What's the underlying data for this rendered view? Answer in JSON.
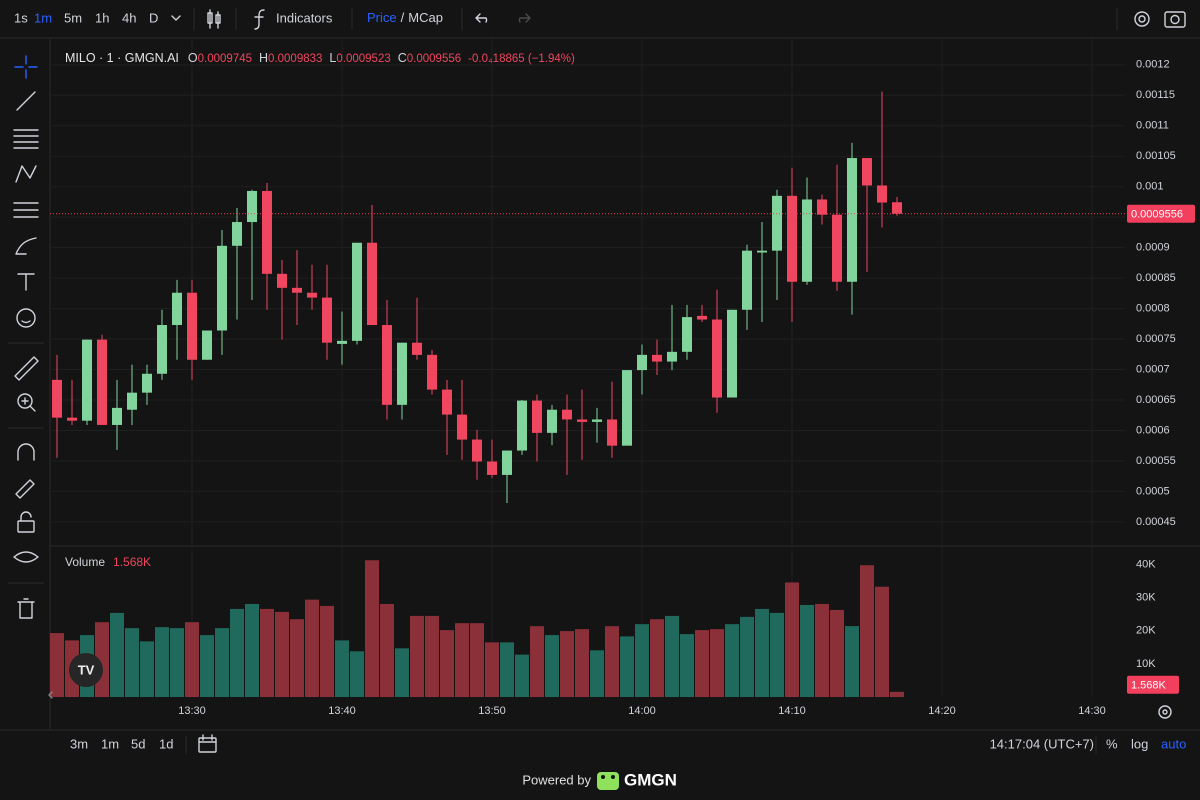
{
  "toolbar": {
    "intervals": [
      "1s",
      "1m",
      "5m",
      "1h",
      "4h",
      "D"
    ],
    "indicators": "Indicators",
    "price": "Price",
    "separator": "/",
    "mcap": "MCap"
  },
  "chart_data": {
    "type": "candlestick",
    "symbol": "MILO · 1 · GMGN.AI",
    "ohlc_labels": [
      "O",
      "H",
      "L",
      "C"
    ],
    "change": "-0.0₄18865 (−1.94%)",
    "open": [
      0.000683,
      0.000621,
      0.000616,
      0.000749,
      0.000609,
      0.000634,
      0.000662,
      0.000693,
      0.000773,
      0.000826,
      0.000716,
      0.000764,
      0.000903,
      0.000942,
      0.000993,
      0.000857,
      0.000834,
      0.000826,
      0.000818,
      0.000742,
      0.000747,
      0.000908,
      0.000773,
      0.000642,
      0.000744,
      0.000724,
      0.000667,
      0.000626,
      0.000585,
      0.000549,
      0.000527,
      0.000567,
      0.000649,
      0.000596,
      0.000634,
      0.000618,
      0.000614,
      0.000618,
      0.000575,
      0.000699,
      0.000724,
      0.000713,
      0.000729,
      0.000788,
      0.000782,
      0.000654,
      0.000798,
      0.000892,
      0.000895,
      0.000985,
      0.000844,
      0.000979,
      0.000954,
      0.000844,
      0.001047,
      0.001002,
      0.0009745
    ],
    "high": [
      0.000724,
      0.000683,
      0.000749,
      0.000757,
      0.000683,
      0.000708,
      0.000708,
      0.000798,
      0.000847,
      0.000847,
      0.000764,
      0.000929,
      0.000965,
      0.000995,
      0.001006,
      0.00088,
      0.000896,
      0.000872,
      0.000872,
      0.000795,
      0.000908,
      0.00097,
      0.000814,
      0.000744,
      0.000818,
      0.000732,
      0.000683,
      0.000683,
      0.000601,
      0.000585,
      0.000567,
      0.00065,
      0.000659,
      0.000642,
      0.000659,
      0.000667,
      0.000637,
      0.00068,
      0.000699,
      0.000741,
      0.000749,
      0.000806,
      0.000806,
      0.000806,
      0.000831,
      0.000798,
      0.000905,
      0.000942,
      0.000995,
      0.001031,
      0.001015,
      0.000987,
      0.001036,
      0.001072,
      0.001047,
      0.001156,
      0.0009833
    ],
    "low": [
      0.000555,
      0.000609,
      0.000609,
      0.000609,
      0.000568,
      0.000609,
      0.000642,
      0.000683,
      0.000716,
      0.000683,
      0.000716,
      0.000724,
      0.000782,
      0.000814,
      0.000798,
      0.000749,
      0.000773,
      0.000798,
      0.000716,
      0.000708,
      0.000741,
      0.000773,
      0.000618,
      0.000618,
      0.000716,
      0.000659,
      0.00056,
      0.000552,
      0.000519,
      0.000522,
      0.000481,
      0.00056,
      0.000549,
      0.000576,
      0.000527,
      0.000552,
      0.00058,
      0.000555,
      0.000575,
      0.000659,
      0.000691,
      0.000699,
      0.000716,
      0.000778,
      0.000629,
      0.000654,
      0.000765,
      0.000778,
      0.000814,
      0.000778,
      0.000839,
      0.000938,
      0.000829,
      0.00079,
      0.00086,
      0.000933,
      0.0009523
    ],
    "close": [
      0.000621,
      0.000616,
      0.000749,
      0.000609,
      0.000637,
      0.000662,
      0.000693,
      0.000773,
      0.000826,
      0.000716,
      0.000764,
      0.000903,
      0.000942,
      0.000993,
      0.000857,
      0.000834,
      0.000826,
      0.000818,
      0.000744,
      0.000747,
      0.000908,
      0.000773,
      0.000642,
      0.000744,
      0.000724,
      0.000667,
      0.000626,
      0.000585,
      0.000549,
      0.000527,
      0.000567,
      0.000649,
      0.000596,
      0.000634,
      0.000618,
      0.000614,
      0.000618,
      0.000575,
      0.000699,
      0.000724,
      0.000713,
      0.000729,
      0.000786,
      0.000782,
      0.000654,
      0.000798,
      0.000895,
      0.000895,
      0.000985,
      0.000844,
      0.000979,
      0.000954,
      0.000844,
      0.001047,
      0.001002,
      0.000974,
      0.0009556
    ],
    "up_color": "#81d49b",
    "down_color": "#f0465f",
    "last_price_color": "#f23f5d",
    "ylim": [
      0.000412,
      0.001244
    ],
    "yticks": [
      0.0012,
      0.00115,
      0.0011,
      0.00105,
      0.001,
      0.00095,
      0.0009,
      0.00085,
      0.0008,
      0.00075,
      0.0007,
      0.00065,
      0.0006,
      0.00055,
      0.0005,
      0.00045
    ],
    "xticks": [
      "13:30",
      "13:40",
      "13:50",
      "14:00",
      "14:10",
      "14:20",
      "14:30"
    ],
    "grid": true,
    "volume": {
      "title": "Volume",
      "up_color": "#1f6a5c",
      "down_color": "#8b2f39",
      "values": [
        19300,
        17100,
        18700,
        22600,
        25400,
        20800,
        16800,
        21100,
        20800,
        22600,
        18700,
        20800,
        26600,
        28100,
        26600,
        25700,
        23500,
        29400,
        27500,
        17100,
        13800,
        41300,
        28100,
        14700,
        24500,
        24500,
        20200,
        22300,
        22300,
        16500,
        16500,
        12800,
        21400,
        18700,
        19900,
        20500,
        14100,
        21400,
        18300,
        22000,
        23500,
        24500,
        19000,
        20200,
        20500,
        22000,
        24200,
        26600,
        25400,
        34600,
        27800,
        28100,
        26300,
        21400,
        39800,
        33300,
        1568
      ],
      "value_labels": [
        null,
        null,
        null,
        null,
        null,
        null,
        null,
        null,
        null,
        null,
        null,
        null,
        null,
        null,
        null,
        null,
        null,
        null,
        null,
        null,
        null,
        null,
        null,
        null,
        null,
        null,
        null,
        null,
        null,
        null,
        null,
        null,
        null,
        null,
        null,
        null,
        null,
        null,
        null,
        null,
        null,
        null,
        null,
        null,
        null,
        null,
        null,
        null,
        null,
        null,
        null,
        null,
        null,
        null,
        null,
        null,
        "1.568K"
      ],
      "ylim": [
        0,
        45000
      ],
      "yticks": [
        {
          "value": 10000,
          "label": "10K"
        },
        {
          "value": 20000,
          "label": "20K"
        },
        {
          "value": 30000,
          "label": "30K"
        },
        {
          "value": 40000,
          "label": "40K"
        }
      ]
    }
  },
  "footer": {
    "ranges": [
      "3m",
      "1m",
      "5d",
      "1d"
    ],
    "time": "14:17:04 (UTC+7)",
    "percent": "%",
    "log": "log",
    "auto": "auto",
    "powered": "Powered by",
    "brand": "GMGN"
  }
}
